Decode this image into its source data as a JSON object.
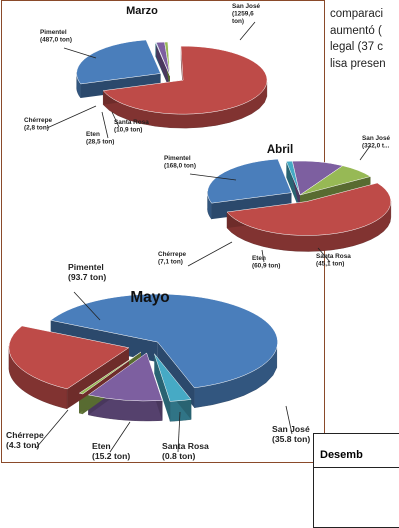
{
  "body_text": {
    "lines": [
      "comparaci",
      "aumentó (",
      "legal (37 c",
      "lisa presen"
    ]
  },
  "desembarque_box": {
    "header": "Desemb"
  },
  "colors": {
    "pimentel": "#4a7ebb",
    "cherrepe": "#46aac5",
    "eten": "#7d5fa0",
    "santa_rosa": "#97b955",
    "san_jose": "#be4b48",
    "border": "#8a4a2a"
  },
  "chart_data": [
    {
      "type": "pie",
      "title": "Marzo",
      "series": [
        {
          "name": "Pimentel",
          "label": "Pimentel\n(487,0 ton)",
          "value": 487.0
        },
        {
          "name": "Chérrepe",
          "label": "Chérrepe\n(2,8 ton)",
          "value": 2.8
        },
        {
          "name": "Eten",
          "label": "Eten\n(28,5 ton)",
          "value": 28.5
        },
        {
          "name": "Santa Rosa",
          "label": "Santa Rosa\n(10,9 ton)",
          "value": 10.9
        },
        {
          "name": "San José",
          "label": "San José\n(1259,6\nton)",
          "value": 1259.6
        }
      ]
    },
    {
      "type": "pie",
      "title": "Abril",
      "series": [
        {
          "name": "Pimentel",
          "label": "Pimentel\n(168,0 ton)",
          "value": 168.0
        },
        {
          "name": "Chérrepe",
          "label": "Chérrepe\n(7,1 ton)",
          "value": 7.1
        },
        {
          "name": "Eten",
          "label": "Eten\n(60,9 ton)",
          "value": 60.9
        },
        {
          "name": "Santa Rosa",
          "label": "Santa Rosa\n(45,1 ton)",
          "value": 45.1
        },
        {
          "name": "San José",
          "label": "San José\n(332,0 t...",
          "value": 332.0
        }
      ]
    },
    {
      "type": "pie",
      "title": "Mayo",
      "series": [
        {
          "name": "Pimentel",
          "label": "Pimentel\n(93.7 ton)",
          "value": 93.7
        },
        {
          "name": "Chérrepe",
          "label": "Chérrepe\n(4.3 ton)",
          "value": 4.3
        },
        {
          "name": "Eten",
          "label": "Eten\n(15.2 ton)",
          "value": 15.2
        },
        {
          "name": "Santa Rosa",
          "label": "Santa Rosa\n(0.8 ton)",
          "value": 0.8
        },
        {
          "name": "San José",
          "label": "San José\n(35.8 ton)",
          "value": 35.8
        }
      ]
    }
  ]
}
